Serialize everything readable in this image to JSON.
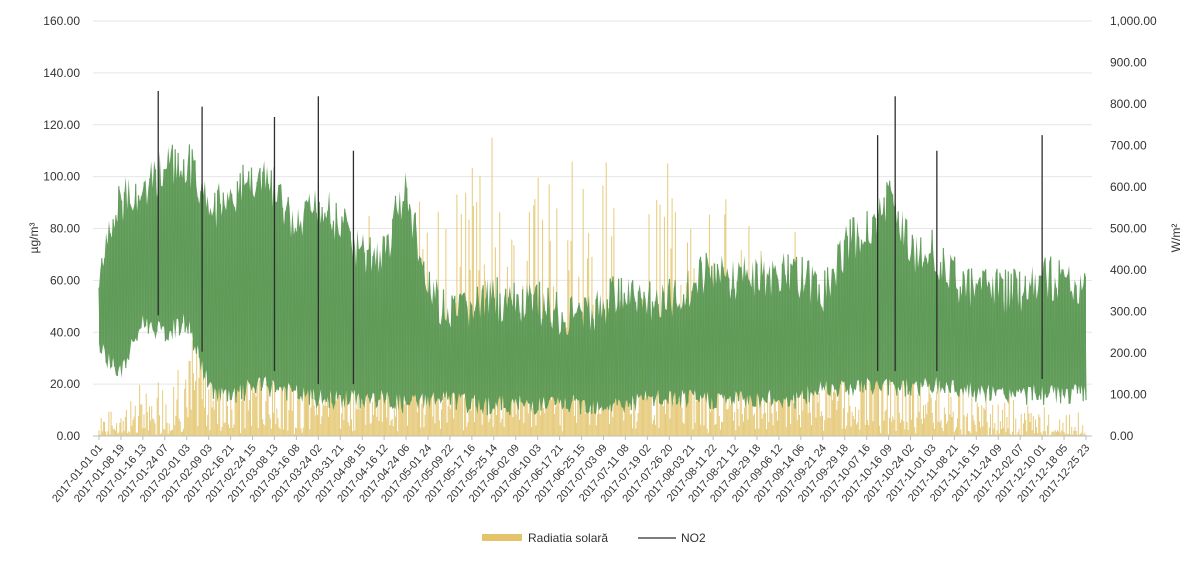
{
  "chart_data": {
    "type": "line",
    "title": "",
    "subtitle": "",
    "xlabel": "",
    "ylabel_left": "µg/m³",
    "ylabel_right": "W/m²",
    "ylim_left": [
      0,
      160
    ],
    "ylim_right": [
      0,
      1000
    ],
    "yticks_left": [
      "0.00",
      "20.00",
      "40.00",
      "60.00",
      "80.00",
      "100.00",
      "120.00",
      "140.00",
      "160.00"
    ],
    "yticks_right": [
      "0.00",
      "100.00",
      "200.00",
      "300.00",
      "400.00",
      "500.00",
      "600.00",
      "700.00",
      "800.00",
      "900.00",
      "1,000.00"
    ],
    "grid": true,
    "legend_position": "bottom",
    "x_ticks": [
      "2017-01-01 01",
      "2017-01-08 19",
      "2017-01-16 13",
      "2017-01-24 07",
      "2017-02-01 03",
      "2017-02-09 03",
      "2017-02-16 21",
      "2017-02-24 15",
      "2017-03-08 13",
      "2017-03-16 08",
      "2017-03-24 02",
      "2017-03-31 21",
      "2017-04-08 15",
      "2017-04-16 12",
      "2017-04-24 06",
      "2017-05-01 24",
      "2017-05-09 22",
      "2017-05-17 16",
      "2017-05-25 14",
      "2017-06-02 09",
      "2017-06-10 03",
      "2017-06-17 21",
      "2017-06-25 15",
      "2017-07-03 09",
      "2017-07-11 08",
      "2017-07-19 02",
      "2017-07-26 20",
      "2017-08-03 21",
      "2017-08-11 22",
      "2017-08-21 12",
      "2017-08-29 18",
      "2017-09-06 12",
      "2017-09-14 06",
      "2017-09-21 24",
      "2017-09-29 18",
      "2017-10-07 16",
      "2017-10-16 09",
      "2017-10-24 02",
      "2017-11-01 03",
      "2017-11-08 21",
      "2017-11-16 15",
      "2017-11-24 09",
      "2017-12-02 07",
      "2017-12-10 01",
      "2017-12-18 05",
      "2017-12-25 23"
    ],
    "series": [
      {
        "name": "Radiatia solară",
        "axis": "right",
        "color": "#E3C46A",
        "kind": "area-bars",
        "profile": {
          "x_index": [
            0,
            2,
            4,
            5,
            7,
            9,
            11,
            13,
            14,
            15,
            16,
            17,
            18,
            19,
            20,
            21,
            22,
            23,
            24,
            25,
            26,
            27,
            28,
            29,
            30,
            31,
            32,
            33,
            34,
            35,
            36,
            37,
            38,
            39,
            40,
            41,
            42,
            43,
            44,
            45
          ],
          "peak_w_m2": [
            80,
            150,
            240,
            380,
            420,
            480,
            520,
            560,
            600,
            640,
            720,
            760,
            760,
            740,
            720,
            680,
            700,
            720,
            740,
            720,
            700,
            660,
            640,
            620,
            600,
            560,
            520,
            480,
            440,
            400,
            340,
            280,
            220,
            180,
            150,
            120,
            100,
            80,
            70,
            60
          ]
        }
      },
      {
        "name": "NO2",
        "axis": "left",
        "color": "#2E2E2E",
        "fill_color": "#5E9A57",
        "kind": "line",
        "profile": {
          "x_index": [
            0,
            1,
            2,
            3,
            4,
            5,
            6,
            7,
            8,
            9,
            10,
            11,
            12,
            13,
            14,
            15,
            16,
            17,
            18,
            19,
            20,
            21,
            22,
            23,
            24,
            25,
            26,
            27,
            28,
            29,
            30,
            31,
            32,
            33,
            34,
            35,
            36,
            37,
            38,
            39,
            40,
            41,
            42,
            43,
            44,
            45
          ],
          "upper_ug_m3": [
            75,
            100,
            105,
            112,
            115,
            98,
            98,
            110,
            105,
            88,
            100,
            90,
            80,
            80,
            105,
            65,
            55,
            60,
            62,
            60,
            60,
            55,
            55,
            60,
            65,
            60,
            62,
            68,
            72,
            70,
            70,
            72,
            70,
            65,
            82,
            90,
            100,
            80,
            80,
            70,
            65,
            65,
            65,
            70,
            70,
            65
          ],
          "lower_ug_m3": [
            30,
            20,
            40,
            35,
            40,
            15,
            10,
            15,
            15,
            12,
            10,
            10,
            10,
            10,
            8,
            10,
            10,
            8,
            8,
            8,
            8,
            8,
            8,
            8,
            8,
            10,
            10,
            10,
            10,
            10,
            10,
            10,
            10,
            15,
            15,
            15,
            15,
            15,
            15,
            15,
            12,
            12,
            12,
            12,
            12,
            12
          ],
          "peaks_ug_m3": [
            {
              "x_index": 2.7,
              "value": 133
            },
            {
              "x_index": 4.7,
              "value": 127
            },
            {
              "x_index": 8.0,
              "value": 123
            },
            {
              "x_index": 10.0,
              "value": 131
            },
            {
              "x_index": 11.6,
              "value": 110
            },
            {
              "x_index": 35.5,
              "value": 116
            },
            {
              "x_index": 36.3,
              "value": 131
            },
            {
              "x_index": 38.2,
              "value": 110
            },
            {
              "x_index": 43.0,
              "value": 116
            }
          ]
        }
      }
    ]
  }
}
